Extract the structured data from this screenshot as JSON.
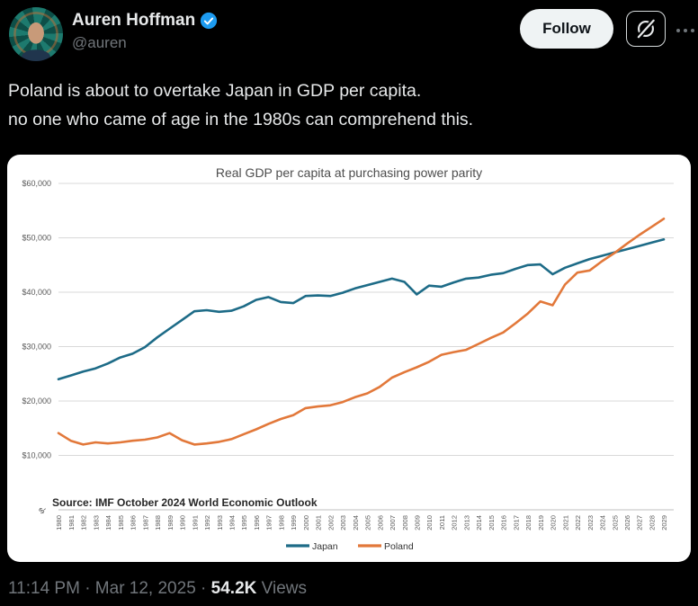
{
  "header": {
    "display_name": "Auren Hoffman",
    "handle": "@auren",
    "follow_label": "Follow"
  },
  "tweet": {
    "line1": "Poland is about to overtake Japan in GDP per capita.",
    "line2": "no one who came of age in the 1980s can comprehend this."
  },
  "footer": {
    "timestamp": "11:14 PM · Mar 12, 2025",
    "separator": " · ",
    "views_count": "54.2K",
    "views_label": " Views"
  },
  "colors": {
    "verified_blue": "#1d9bf0",
    "background": "#000000",
    "primary_text": "#e7e9ea",
    "secondary_text": "#71767b"
  },
  "chart_data": {
    "type": "line",
    "title": "Real GDP per capita at purchasing power parity",
    "source": "Source: IMF October 2024 World Economic Outlook",
    "ylim": [
      0,
      60000
    ],
    "ytick_interval": 10000,
    "ytick_labels": [
      "$-",
      "$10,000",
      "$20,000",
      "$30,000",
      "$40,000",
      "$50,000",
      "$60,000"
    ],
    "grid": true,
    "legend_position": "bottom",
    "x": [
      1980,
      1981,
      1982,
      1983,
      1984,
      1985,
      1986,
      1987,
      1988,
      1989,
      1990,
      1991,
      1992,
      1993,
      1994,
      1995,
      1996,
      1997,
      1998,
      1999,
      2000,
      2001,
      2002,
      2003,
      2004,
      2005,
      2006,
      2007,
      2008,
      2009,
      2010,
      2011,
      2012,
      2013,
      2014,
      2015,
      2016,
      2017,
      2018,
      2019,
      2020,
      2021,
      2022,
      2023,
      2024,
      2025,
      2026,
      2027,
      2028,
      2029
    ],
    "series": [
      {
        "name": "Japan",
        "color": "#1d6b87",
        "values": [
          24000,
          24700,
          25400,
          26000,
          26900,
          28000,
          28700,
          29900,
          31700,
          33300,
          34900,
          36500,
          36700,
          36400,
          36600,
          37400,
          38600,
          39100,
          38200,
          38000,
          39300,
          39400,
          39300,
          39900,
          40700,
          41300,
          41900,
          42500,
          41900,
          39600,
          41200,
          41000,
          41800,
          42500,
          42700,
          43200,
          43500,
          44300,
          45000,
          45100,
          43300,
          44500,
          45300,
          46100,
          46700,
          47300,
          47900,
          48500,
          49100,
          49700
        ]
      },
      {
        "name": "Poland",
        "color": "#e2783a",
        "values": [
          14100,
          12700,
          12000,
          12400,
          12200,
          12400,
          12700,
          12900,
          13300,
          14100,
          12800,
          12000,
          12200,
          12500,
          13000,
          13900,
          14800,
          15800,
          16700,
          17400,
          18700,
          19000,
          19200,
          19800,
          20700,
          21400,
          22600,
          24300,
          25300,
          26200,
          27200,
          28500,
          29000,
          29400,
          30500,
          31600,
          32600,
          34300,
          36100,
          38300,
          37600,
          41400,
          43600,
          44000,
          45700,
          47200,
          48900,
          50500,
          52000,
          53500
        ]
      }
    ]
  }
}
